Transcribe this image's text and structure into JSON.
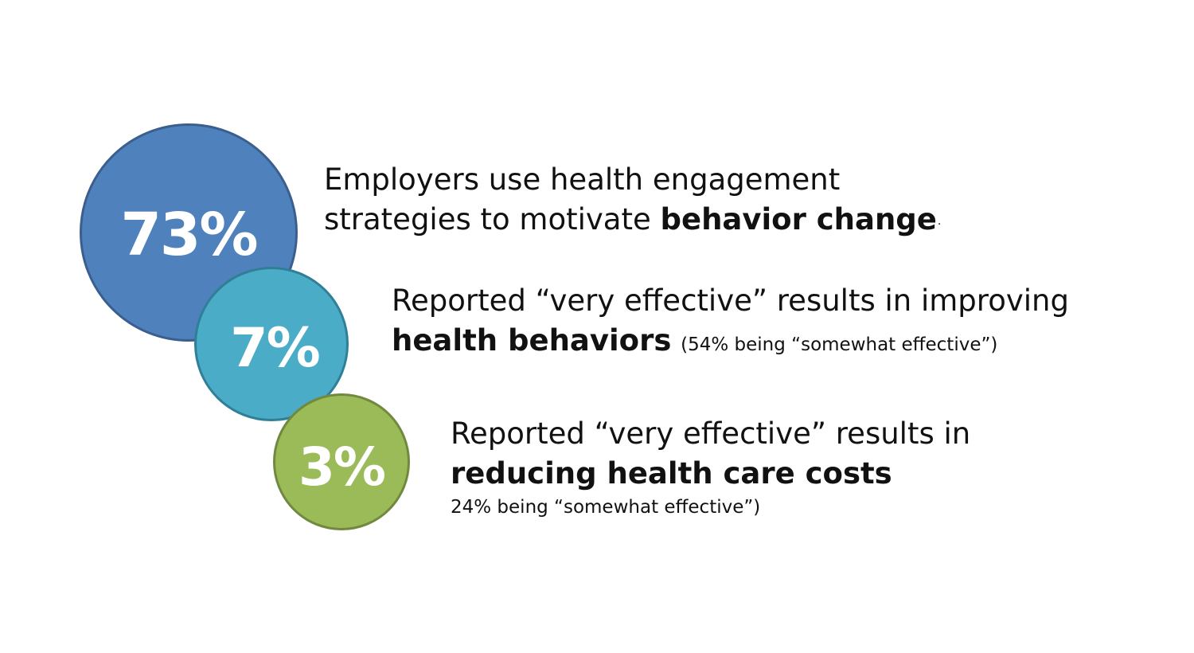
{
  "stats": [
    {
      "value": "73%",
      "color": "#4f81bd",
      "line1": "Employers use health engagement",
      "line2_prefix": "strategies to motivate ",
      "line2_bold": "behavior change",
      "line2_suffix": "."
    },
    {
      "value": "7%",
      "color": "#4aacc6",
      "line1": "Reported “very effective” results in improving",
      "line2_bold": "health behaviors",
      "line2_note": "(54% being “somewhat effective”)"
    },
    {
      "value": "3%",
      "color": "#9bbb59",
      "line1": "Reported “very effective” results in",
      "line2_bold": "reducing health care costs",
      "line3_note": "24% being “somewhat effective”)"
    }
  ]
}
